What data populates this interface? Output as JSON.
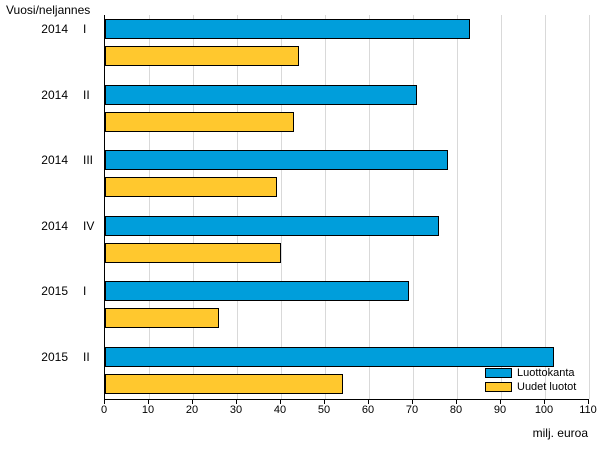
{
  "axis_title": "Vuosi/neljannes",
  "x_axis_unit": "milj. euroa",
  "colors": {
    "luottokanta": "#009EDB",
    "uudet_luotot": "#FFC82E",
    "gridline": "#D9D9D9",
    "bar_border": "#000000",
    "axis": "#000000"
  },
  "chart_data": {
    "type": "bar",
    "orientation": "horizontal",
    "title": "Vuosi/neljannes",
    "ylabel": "Vuosi/neljannes",
    "xlabel": "milj. euroa",
    "categories": [
      {
        "year": "2014",
        "quarter": "I"
      },
      {
        "year": "2014",
        "quarter": "II"
      },
      {
        "year": "2014",
        "quarter": "III"
      },
      {
        "year": "2014",
        "quarter": "IV"
      },
      {
        "year": "2015",
        "quarter": "I"
      },
      {
        "year": "2015",
        "quarter": "II"
      }
    ],
    "series": [
      {
        "name": "Luottokanta",
        "color": "#009EDB",
        "values": [
          83,
          71,
          78,
          76,
          69,
          102
        ]
      },
      {
        "name": "Uudet luotot",
        "color": "#FFC82E",
        "values": [
          44,
          43,
          39,
          40,
          26,
          54
        ]
      }
    ],
    "xlim": [
      0,
      110
    ],
    "xticks": [
      0,
      10,
      20,
      30,
      40,
      50,
      60,
      70,
      80,
      90,
      100,
      110
    ],
    "grid": "vertical",
    "legend_position": "inside-bottom-right"
  }
}
